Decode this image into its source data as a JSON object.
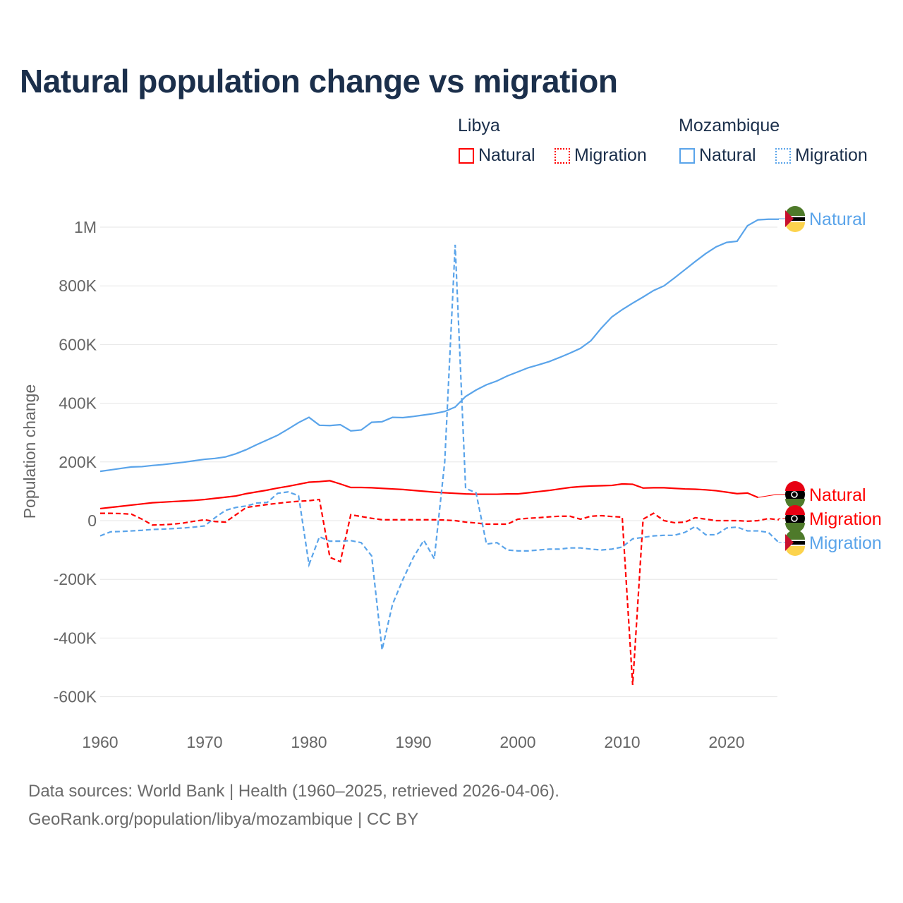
{
  "chart_data": {
    "type": "line",
    "title": "Natural population change vs migration",
    "ylabel": "Population change",
    "xlabel": "",
    "xlim": [
      1960,
      2025
    ],
    "ylim": [
      -700000,
      1100000
    ],
    "x_ticks": [
      1960,
      1970,
      1980,
      1990,
      2000,
      2010,
      2020
    ],
    "y_ticks": [
      {
        "v": 1000000,
        "l": "1M"
      },
      {
        "v": 800000,
        "l": "800K"
      },
      {
        "v": 600000,
        "l": "600K"
      },
      {
        "v": 400000,
        "l": "400K"
      },
      {
        "v": 200000,
        "l": "200K"
      },
      {
        "v": 0,
        "l": "0"
      },
      {
        "v": -200000,
        "l": "-200K"
      },
      {
        "v": -400000,
        "l": "-400K"
      },
      {
        "v": -600000,
        "l": "-600K"
      }
    ],
    "grid": true,
    "legend": {
      "placement": "top-right",
      "groups": [
        {
          "name": "Libya",
          "items": [
            "Natural",
            "Migration"
          ]
        },
        {
          "name": "Mozambique",
          "items": [
            "Natural",
            "Migration"
          ]
        }
      ]
    },
    "series": [
      {
        "name": "Natural",
        "country": "Mozambique",
        "color": "#5aa4ea",
        "dash": false,
        "start": 1960,
        "values_k": [
          168,
          173,
          178,
          183,
          184,
          188,
          191,
          195,
          199,
          204,
          209,
          212,
          217,
          228,
          242,
          259,
          275,
          291,
          312,
          334,
          352,
          325,
          324,
          327,
          306,
          309,
          335,
          337,
          352,
          351,
          355,
          360,
          365,
          372,
          387,
          423,
          445,
          463,
          476,
          493,
          507,
          521,
          531,
          542,
          556,
          571,
          587,
          613,
          656,
          694,
          719,
          741,
          762,
          784,
          800,
          827,
          855,
          883,
          910,
          933,
          948,
          952,
          1005,
          1025,
          1027,
          1027
        ]
      },
      {
        "name": "Natural",
        "country": "Libya",
        "color": "#ff0000",
        "dash": false,
        "start": 1960,
        "values_k": [
          41,
          45,
          49,
          53,
          57,
          61,
          63,
          65,
          67,
          69,
          72,
          76,
          80,
          84,
          92,
          98,
          104,
          111,
          117,
          124,
          131,
          133,
          136,
          125,
          113,
          113,
          112,
          110,
          108,
          106,
          103,
          100,
          97,
          95,
          93,
          91,
          90,
          90,
          90,
          91,
          91,
          95,
          99,
          103,
          108,
          113,
          116,
          118,
          119,
          120,
          125,
          124,
          111,
          112,
          112,
          110,
          108,
          107,
          105,
          102,
          97,
          92,
          94,
          79
        ]
      },
      {
        "name": "Migration",
        "country": "Libya",
        "color": "#ff0000",
        "dash": true,
        "start": 1960,
        "values_k": [
          25,
          25,
          24,
          22,
          5,
          -15,
          -14,
          -12,
          -8,
          -2,
          3,
          -3,
          -5,
          20,
          45,
          50,
          55,
          59,
          63,
          66,
          68,
          72,
          -125,
          -140,
          20,
          14,
          8,
          3,
          3,
          3,
          3,
          3,
          3,
          2,
          0,
          -5,
          -8,
          -12,
          -12,
          -12,
          5,
          8,
          10,
          13,
          15,
          15,
          5,
          15,
          17,
          14,
          12,
          -560,
          5,
          25,
          0,
          -7,
          -5,
          10,
          5,
          0,
          0,
          0,
          -2,
          0,
          7,
          3
        ]
      },
      {
        "name": "Migration",
        "country": "Mozambique",
        "color": "#5aa4ea",
        "dash": true,
        "start": 1960,
        "values_k": [
          -52,
          -38,
          -37,
          -35,
          -33,
          -30,
          -29,
          -27,
          -25,
          -22,
          -18,
          10,
          35,
          45,
          50,
          60,
          62,
          93,
          98,
          85,
          -150,
          -55,
          -70,
          -70,
          -68,
          -75,
          -120,
          -440,
          -285,
          -200,
          -125,
          -67,
          -130,
          200,
          940,
          110,
          95,
          -80,
          -75,
          -100,
          -103,
          -103,
          -100,
          -97,
          -97,
          -93,
          -93,
          -97,
          -100,
          -97,
          -90,
          -62,
          -57,
          -52,
          -50,
          -50,
          -40,
          -20,
          -48,
          -48,
          -25,
          -22,
          -35,
          -35,
          -40,
          -75
        ]
      }
    ],
    "end_labels": [
      "Natural",
      "Natural",
      "Migration",
      "Migration"
    ]
  },
  "legend": {
    "libya": "Libya",
    "mozambique": "Mozambique",
    "natural": "Natural",
    "migration": "Migration"
  },
  "footer": {
    "line1": "Data sources: World Bank | Health (1960–2025, retrieved 2026-04-06).",
    "line2": "GeoRank.org/population/libya/mozambique | CC BY"
  },
  "colors": {
    "libya": "#ff0000",
    "mozambique": "#5aa4ea",
    "title": "#1b2f4b"
  }
}
